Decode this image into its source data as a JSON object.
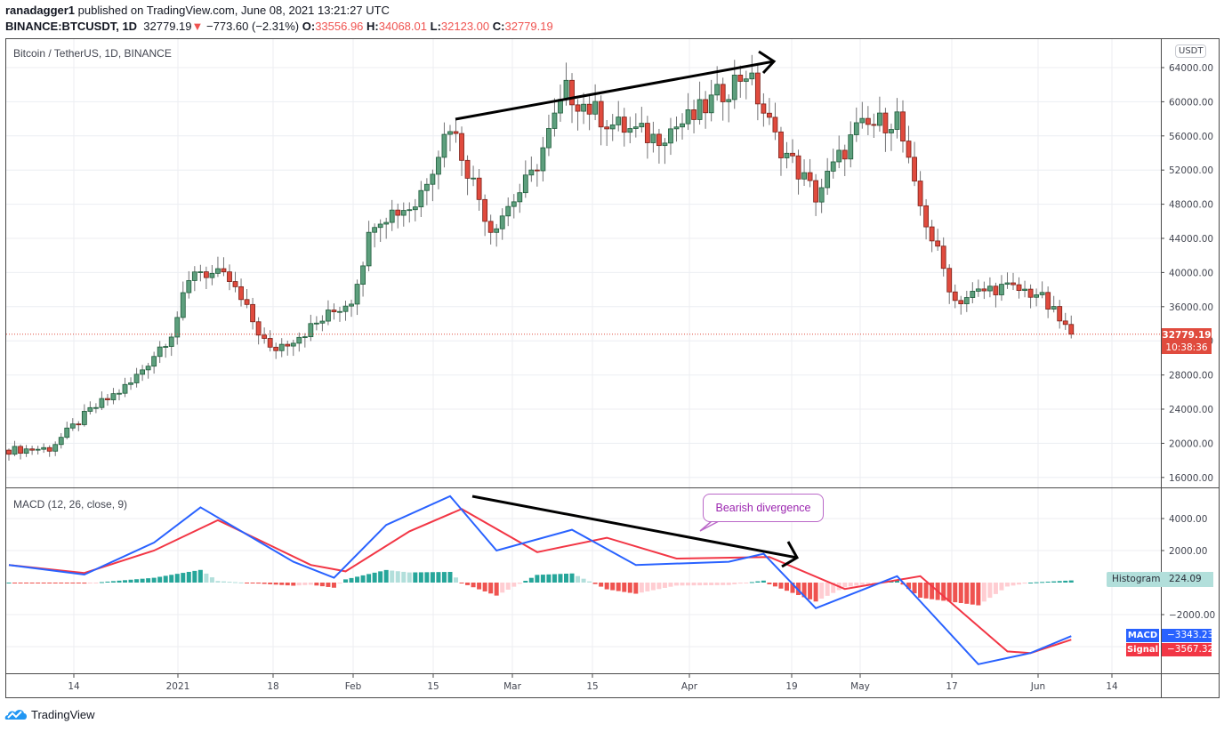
{
  "header": {
    "author": "ranadagger1",
    "published_text": " published on TradingView.com, June 08, 2021 13:21:27 UTC",
    "symbol": "BINANCE:BTCUSDT, 1D",
    "last_price": "32779.19",
    "change_arrow": "▼",
    "change": "−773.60 (−2.31%)",
    "o_label": "O:",
    "o_value": "33556.96",
    "h_label": "H:",
    "h_value": "34068.01",
    "l_label": "L:",
    "l_value": "32123.00",
    "c_label": "C:",
    "c_value": "32779.19"
  },
  "main_pane": {
    "title": "Bitcoin / TetherUS, 1D, BINANCE",
    "currency_badge": "USDT",
    "price_tag": "32779.19",
    "countdown": "10:38:36"
  },
  "macd_pane": {
    "title": "MACD (12, 26, close, 9)",
    "histogram_label": "Histogram",
    "histogram_value": "224.09",
    "macd_label": "MACD",
    "macd_value": "−3343.23",
    "signal_label": "Signal",
    "signal_value": "−3567.32",
    "annotation": "Bearish divergence"
  },
  "footer": {
    "brand": "TradingView"
  },
  "colors": {
    "up": "#5d9f7d",
    "down": "#e04b3e",
    "up_border": "#1e5b3a",
    "down_border": "#7a1f17",
    "macd": "#2962ff",
    "signal": "#f23645",
    "hist_up_strong": "#26a69a",
    "hist_up_weak": "#b2dfdb",
    "hist_down_strong": "#ef5350",
    "hist_down_weak": "#ffcdd2",
    "callout": "#9c27b0"
  },
  "chart_data": [
    {
      "type": "candlestick",
      "title": "Bitcoin / TetherUS, 1D, BINANCE",
      "ylabel": "USDT",
      "ylim": [
        15000,
        66000
      ],
      "yticks": [
        16000,
        20000,
        24000,
        28000,
        32000,
        36000,
        40000,
        44000,
        48000,
        52000,
        56000,
        60000,
        64000
      ],
      "xticks": [
        "14",
        "2021",
        "18",
        "Feb",
        "15",
        "Mar",
        "15",
        "Apr",
        "19",
        "May",
        "17",
        "Jun",
        "14"
      ],
      "grid": true,
      "last_close": 32779.19,
      "annotations": [
        {
          "type": "trendline-arrow",
          "from": {
            "date": "2021-02-21",
            "price": 58300
          },
          "to": {
            "date": "2021-04-14",
            "price": 64500
          },
          "note": "rising price highs"
        }
      ],
      "approx_closes_weekly": [
        {
          "date": "2020-12-07",
          "close": 19200
        },
        {
          "date": "2020-12-14",
          "close": 19400
        },
        {
          "date": "2020-12-21",
          "close": 23800
        },
        {
          "date": "2020-12-28",
          "close": 27000
        },
        {
          "date": "2021-01-04",
          "close": 33000
        },
        {
          "date": "2021-01-08",
          "close": 40500
        },
        {
          "date": "2021-01-14",
          "close": 39000
        },
        {
          "date": "2021-01-21",
          "close": 30800
        },
        {
          "date": "2021-01-28",
          "close": 33500
        },
        {
          "date": "2021-02-04",
          "close": 36900
        },
        {
          "date": "2021-02-08",
          "close": 46400
        },
        {
          "date": "2021-02-15",
          "close": 48000
        },
        {
          "date": "2021-02-21",
          "close": 57500
        },
        {
          "date": "2021-02-28",
          "close": 45200
        },
        {
          "date": "2021-03-07",
          "close": 51200
        },
        {
          "date": "2021-03-13",
          "close": 61200
        },
        {
          "date": "2021-03-21",
          "close": 57300
        },
        {
          "date": "2021-03-28",
          "close": 55800
        },
        {
          "date": "2021-04-04",
          "close": 58200
        },
        {
          "date": "2021-04-13",
          "close": 63600
        },
        {
          "date": "2021-04-18",
          "close": 55700
        },
        {
          "date": "2021-04-25",
          "close": 49000
        },
        {
          "date": "2021-05-02",
          "close": 56600
        },
        {
          "date": "2021-05-09",
          "close": 58200
        },
        {
          "date": "2021-05-12",
          "close": 49600
        },
        {
          "date": "2021-05-19",
          "close": 36700
        },
        {
          "date": "2021-05-26",
          "close": 38300
        },
        {
          "date": "2021-06-02",
          "close": 37600
        },
        {
          "date": "2021-06-08",
          "close": 32779.19
        }
      ]
    },
    {
      "type": "line",
      "title": "MACD (12, 26, close, 9)",
      "ylim": [
        -5500,
        5800
      ],
      "yticks": [
        -2000,
        2000,
        4000
      ],
      "series": [
        {
          "name": "MACD",
          "color": "#2962ff",
          "last": -3343.23,
          "values_approx": [
            {
              "date": "2020-12-07",
              "v": 1100
            },
            {
              "date": "2020-12-20",
              "v": 500
            },
            {
              "date": "2021-01-01",
              "v": 2500
            },
            {
              "date": "2021-01-09",
              "v": 4700
            },
            {
              "date": "2021-01-25",
              "v": 1300
            },
            {
              "date": "2021-02-01",
              "v": 300
            },
            {
              "date": "2021-02-10",
              "v": 3600
            },
            {
              "date": "2021-02-21",
              "v": 5400
            },
            {
              "date": "2021-03-01",
              "v": 2000
            },
            {
              "date": "2021-03-14",
              "v": 3300
            },
            {
              "date": "2021-03-25",
              "v": 1100
            },
            {
              "date": "2021-04-10",
              "v": 1300
            },
            {
              "date": "2021-04-16",
              "v": 1800
            },
            {
              "date": "2021-04-25",
              "v": -1600
            },
            {
              "date": "2021-05-09",
              "v": 400
            },
            {
              "date": "2021-05-23",
              "v": -5100
            },
            {
              "date": "2021-06-01",
              "v": -4400
            },
            {
              "date": "2021-06-08",
              "v": -3343
            }
          ]
        },
        {
          "name": "Signal",
          "color": "#f23645",
          "last": -3567.32,
          "values_approx": [
            {
              "date": "2020-12-07",
              "v": 1100
            },
            {
              "date": "2020-12-20",
              "v": 600
            },
            {
              "date": "2021-01-01",
              "v": 2000
            },
            {
              "date": "2021-01-12",
              "v": 3900
            },
            {
              "date": "2021-01-28",
              "v": 1100
            },
            {
              "date": "2021-02-03",
              "v": 700
            },
            {
              "date": "2021-02-14",
              "v": 3200
            },
            {
              "date": "2021-02-23",
              "v": 4600
            },
            {
              "date": "2021-03-08",
              "v": 1900
            },
            {
              "date": "2021-03-20",
              "v": 2800
            },
            {
              "date": "2021-04-01",
              "v": 1500
            },
            {
              "date": "2021-04-17",
              "v": 1600
            },
            {
              "date": "2021-04-30",
              "v": -400
            },
            {
              "date": "2021-05-13",
              "v": 400
            },
            {
              "date": "2021-05-28",
              "v": -4300
            },
            {
              "date": "2021-06-01",
              "v": -4400
            },
            {
              "date": "2021-06-08",
              "v": -3567
            }
          ]
        },
        {
          "name": "Histogram",
          "color": "#26a69a",
          "last": 224.09
        }
      ],
      "annotations": [
        {
          "type": "trendline-arrow",
          "from": {
            "date": "2021-02-21",
            "v": 5400
          },
          "to": {
            "date": "2021-04-19",
            "v": 1600
          },
          "note": "falling MACD highs"
        },
        {
          "type": "callout",
          "text": "Bearish divergence"
        }
      ]
    }
  ]
}
